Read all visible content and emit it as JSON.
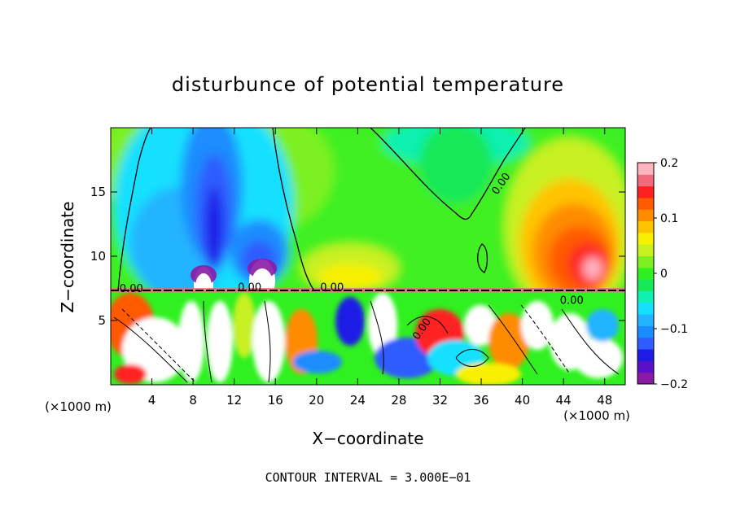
{
  "chart_data": {
    "type": "heatmap",
    "title": "disturbunce of potential temperature",
    "xlabel": "X−coordinate",
    "ylabel": "Z−coordinate",
    "x_unit_label_left": "(×1000 m)",
    "x_unit_label_right": "(×1000 m)",
    "footnote": "CONTOUR INTERVAL = 3.000E−01",
    "xlim": [
      0,
      50
    ],
    "ylim": [
      0,
      20
    ],
    "x_ticks": [
      4,
      8,
      12,
      16,
      20,
      24,
      28,
      32,
      36,
      40,
      44,
      48
    ],
    "y_ticks": [
      5,
      10,
      15
    ],
    "x_tick_labels": [
      "4",
      "8",
      "12",
      "16",
      "20",
      "24",
      "28",
      "32",
      "36",
      "40",
      "44",
      "48"
    ],
    "y_tick_labels": [
      "5",
      "10",
      "15"
    ],
    "colorbar": {
      "range": [
        -0.2,
        0.2
      ],
      "tick_values": [
        0.2,
        0.1,
        0,
        -0.1,
        -0.2
      ],
      "tick_labels": [
        "0.2",
        "0.1",
        "0",
        "−0.1",
        "−0.2"
      ],
      "colors": [
        "#8a1aa6",
        "#5a10c8",
        "#1c1ce6",
        "#2f5cff",
        "#1a8cff",
        "#22b4ff",
        "#16e0ff",
        "#10f0b0",
        "#18e858",
        "#30f020",
        "#7cf020",
        "#c8f020",
        "#f8f000",
        "#ffc400",
        "#ff8c00",
        "#ff5a00",
        "#ff2020",
        "#f06a7a",
        "#ffb4c0"
      ]
    },
    "contour_labels": [
      {
        "text": "0.00",
        "x": 38.2,
        "y": 15.5
      },
      {
        "text": "0.00",
        "x": 2.0,
        "y": 7.2
      },
      {
        "text": "0.00",
        "x": 13.5,
        "y": 7.3
      },
      {
        "text": "0.00",
        "x": 21.5,
        "y": 7.3
      },
      {
        "text": "0.00",
        "x": 44.8,
        "y": 6.3
      },
      {
        "text": "0.00",
        "x": 30.5,
        "y": 4.2
      }
    ],
    "features": {
      "upper_negative_plumes_x": [
        9.5,
        14.5
      ],
      "upper_positive_region_x": [
        40,
        50
      ],
      "upper_positive_peak": 0.2,
      "upper_negative_peak": -0.2,
      "inversion_height": 7.2
    }
  }
}
